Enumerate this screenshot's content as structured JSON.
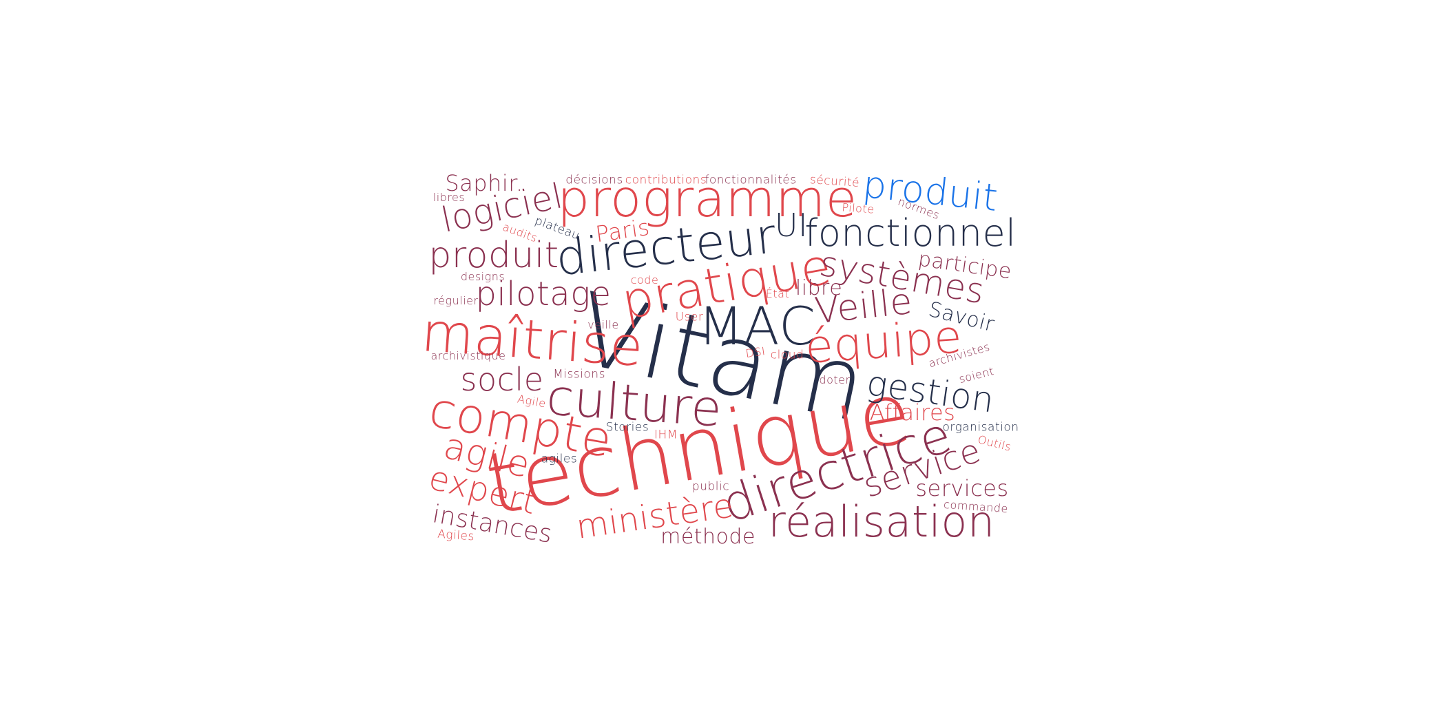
{
  "palette": {
    "red": "#e0474c",
    "maroon": "#8b3150",
    "navy": "#252f4a",
    "blue": "#1a73e8"
  },
  "words": [
    {
      "text": "Vitam",
      "color": "navy"
    },
    {
      "text": "technique",
      "color": "red"
    },
    {
      "text": "programme",
      "color": "red"
    },
    {
      "text": "directeur",
      "color": "navy"
    },
    {
      "text": "pratique",
      "color": "red"
    },
    {
      "text": "MAC",
      "color": "navy"
    },
    {
      "text": "maîtrise",
      "color": "red"
    },
    {
      "text": "culture",
      "color": "maroon"
    },
    {
      "text": "compte",
      "color": "red"
    },
    {
      "text": "directrice",
      "color": "maroon"
    },
    {
      "text": "réalisation",
      "color": "maroon"
    },
    {
      "text": "équipe",
      "color": "red"
    },
    {
      "text": "fonctionnel",
      "color": "navy"
    },
    {
      "text": "produit",
      "color": "blue"
    },
    {
      "text": "logiciel",
      "color": "maroon"
    },
    {
      "text": "produit",
      "color": "maroon"
    },
    {
      "text": "systèmes",
      "color": "maroon"
    },
    {
      "text": "pilotage",
      "color": "maroon"
    },
    {
      "text": "Veille",
      "color": "maroon"
    },
    {
      "text": "gestion",
      "color": "navy"
    },
    {
      "text": "agile",
      "color": "red"
    },
    {
      "text": "expert",
      "color": "red"
    },
    {
      "text": "service",
      "color": "maroon"
    },
    {
      "text": "ministère",
      "color": "red"
    },
    {
      "text": "socle",
      "color": "maroon"
    },
    {
      "text": "UI",
      "color": "navy"
    },
    {
      "text": "instances",
      "color": "maroon"
    },
    {
      "text": "Saphir.",
      "color": "maroon"
    },
    {
      "text": "Paris",
      "color": "red"
    },
    {
      "text": "participe",
      "color": "maroon"
    },
    {
      "text": "Savoir",
      "color": "navy"
    },
    {
      "text": "libre",
      "color": "maroon"
    },
    {
      "text": "Affaires",
      "color": "red"
    },
    {
      "text": "services",
      "color": "maroon"
    },
    {
      "text": "méthode",
      "color": "maroon"
    },
    {
      "text": "décisions",
      "color": "maroon"
    },
    {
      "text": "contributions",
      "color": "red"
    },
    {
      "text": "fonctionnalités",
      "color": "maroon"
    },
    {
      "text": "sécurité",
      "color": "red"
    },
    {
      "text": "libres",
      "color": "maroon"
    },
    {
      "text": "Pilote",
      "color": "red"
    },
    {
      "text": "normes",
      "color": "maroon"
    },
    {
      "text": "audits",
      "color": "red"
    },
    {
      "text": "plateau",
      "color": "navy"
    },
    {
      "text": "designs",
      "color": "maroon"
    },
    {
      "text": "code",
      "color": "red"
    },
    {
      "text": "régulier",
      "color": "maroon"
    },
    {
      "text": "État",
      "color": "red"
    },
    {
      "text": "veille",
      "color": "maroon"
    },
    {
      "text": "User",
      "color": "red"
    },
    {
      "text": "archivistique",
      "color": "maroon"
    },
    {
      "text": "DSI",
      "color": "red"
    },
    {
      "text": "cloud",
      "color": "red"
    },
    {
      "text": "archivistes",
      "color": "maroon"
    },
    {
      "text": "soient",
      "color": "maroon"
    },
    {
      "text": "Missions",
      "color": "maroon"
    },
    {
      "text": "doter",
      "color": "maroon"
    },
    {
      "text": "Agile",
      "color": "red"
    },
    {
      "text": "Stories",
      "color": "navy"
    },
    {
      "text": "IHM",
      "color": "red"
    },
    {
      "text": "organisation",
      "color": "navy"
    },
    {
      "text": "Outils",
      "color": "red"
    },
    {
      "text": "agiles",
      "color": "navy"
    },
    {
      "text": "public",
      "color": "maroon"
    },
    {
      "text": "commande",
      "color": "maroon"
    },
    {
      "text": "Agiles",
      "color": "red"
    }
  ]
}
